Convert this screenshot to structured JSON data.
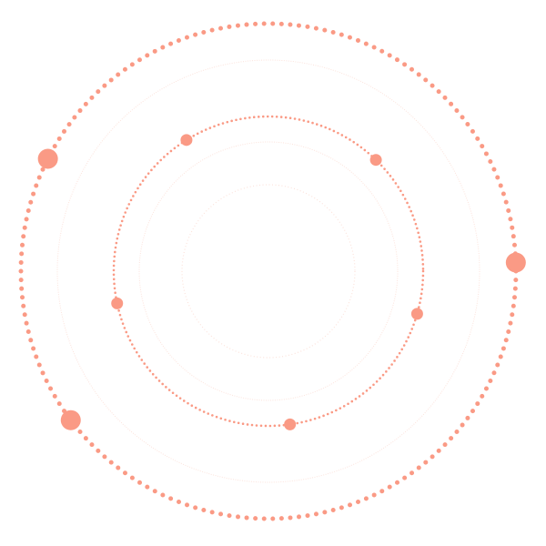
{
  "colors": {
    "accent": "#FA9A85",
    "faint": "#FCE3DC",
    "background": "#ffffff"
  },
  "rings": [
    {
      "name": "outer-dotted-ring",
      "style": "dotted-bold"
    },
    {
      "name": "outer-faint-ring",
      "style": "faint"
    },
    {
      "name": "middle-dotted-ring",
      "style": "dotted"
    },
    {
      "name": "middle-faint-ring",
      "style": "faint"
    },
    {
      "name": "inner-faint-ring",
      "style": "faint-dotted"
    }
  ],
  "orbit_dots": [
    {
      "ring": "outer-dotted-ring",
      "angle_deg": 207,
      "size": "large"
    },
    {
      "ring": "outer-dotted-ring",
      "angle_deg": 358,
      "size": "large"
    },
    {
      "ring": "outer-dotted-ring",
      "angle_deg": 143,
      "size": "large"
    },
    {
      "ring": "middle-dotted-ring",
      "angle_deg": 238,
      "size": "small"
    },
    {
      "ring": "middle-dotted-ring",
      "angle_deg": 314,
      "size": "small"
    },
    {
      "ring": "middle-dotted-ring",
      "angle_deg": 168,
      "size": "small"
    },
    {
      "ring": "middle-dotted-ring",
      "angle_deg": 16,
      "size": "small"
    },
    {
      "ring": "middle-dotted-ring",
      "angle_deg": 82,
      "size": "small"
    }
  ]
}
